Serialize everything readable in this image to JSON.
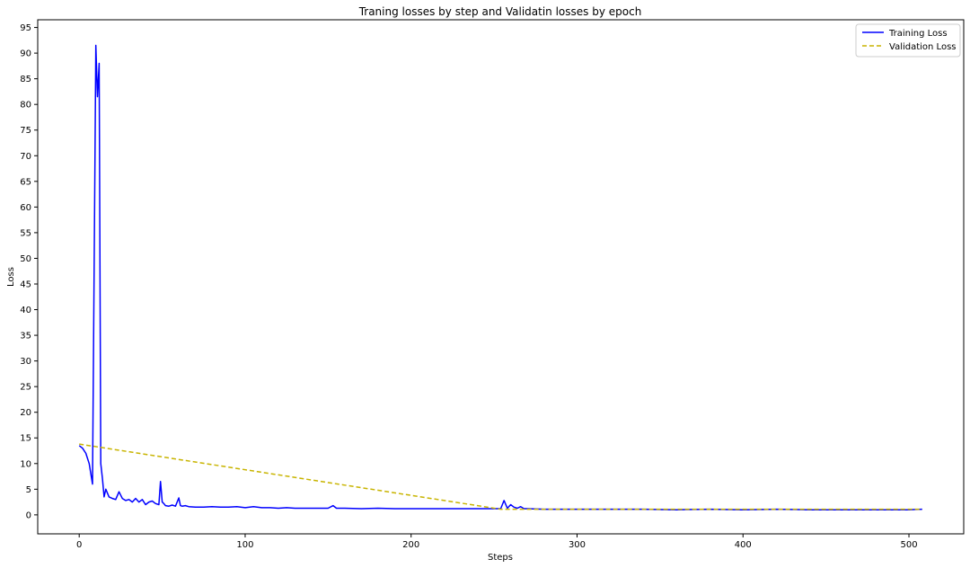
{
  "chart_data": {
    "type": "line",
    "title": "Traning losses by step and Validatin losses by epoch",
    "xlabel": "Steps",
    "ylabel": "Loss",
    "xlim": [
      -25,
      533
    ],
    "ylim": [
      -3.7,
      96.5
    ],
    "xticks": [
      0,
      100,
      200,
      300,
      400,
      500
    ],
    "yticks": [
      0,
      5,
      10,
      15,
      20,
      25,
      30,
      35,
      40,
      45,
      50,
      55,
      60,
      65,
      70,
      75,
      80,
      85,
      90,
      95
    ],
    "grid": false,
    "legend_position": "top-right",
    "series": [
      {
        "name": "Training Loss",
        "color": "#0000ff",
        "style": "solid",
        "x": [
          0,
          2,
          4,
          6,
          8,
          10,
          11,
          12,
          13,
          14,
          15,
          16,
          18,
          20,
          22,
          24,
          26,
          28,
          30,
          32,
          34,
          36,
          38,
          40,
          42,
          44,
          46,
          48,
          49,
          50,
          51,
          52,
          54,
          56,
          58,
          60,
          61,
          62,
          64,
          66,
          70,
          75,
          80,
          85,
          90,
          95,
          100,
          105,
          110,
          115,
          120,
          125,
          130,
          140,
          150,
          153,
          155,
          160,
          170,
          180,
          190,
          200,
          210,
          220,
          230,
          240,
          250,
          254,
          256,
          258,
          260,
          262,
          264,
          266,
          268,
          270,
          280,
          290,
          300,
          320,
          340,
          360,
          380,
          400,
          420,
          440,
          460,
          480,
          500,
          508
        ],
        "y": [
          13.5,
          13.0,
          12.0,
          10.0,
          6.0,
          91.5,
          81.5,
          88.0,
          10.0,
          7.0,
          3.5,
          5.0,
          3.5,
          3.2,
          3.0,
          4.5,
          3.2,
          2.8,
          3.0,
          2.5,
          3.2,
          2.5,
          3.0,
          2.0,
          2.5,
          2.7,
          2.2,
          2.0,
          6.5,
          2.5,
          2.2,
          1.8,
          1.7,
          1.9,
          1.7,
          3.3,
          1.8,
          1.7,
          1.8,
          1.6,
          1.5,
          1.5,
          1.6,
          1.5,
          1.5,
          1.6,
          1.4,
          1.6,
          1.4,
          1.4,
          1.3,
          1.4,
          1.3,
          1.3,
          1.3,
          1.8,
          1.3,
          1.3,
          1.2,
          1.3,
          1.2,
          1.2,
          1.2,
          1.2,
          1.2,
          1.2,
          1.2,
          1.2,
          2.8,
          1.3,
          2.0,
          1.5,
          1.3,
          1.6,
          1.2,
          1.2,
          1.1,
          1.1,
          1.1,
          1.1,
          1.1,
          1.0,
          1.1,
          1.0,
          1.1,
          1.0,
          1.0,
          1.0,
          1.0,
          1.1
        ]
      },
      {
        "name": "Validation Loss",
        "color": "#c8b400",
        "style": "dashed",
        "x": [
          0,
          254,
          508
        ],
        "y": [
          13.8,
          1.1,
          1.1
        ]
      }
    ]
  }
}
